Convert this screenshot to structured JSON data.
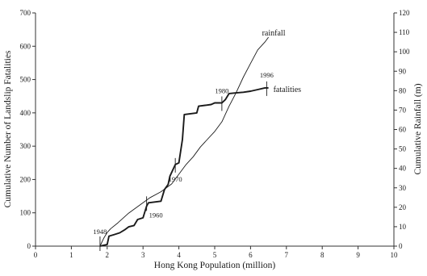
{
  "chart_data": {
    "type": "line",
    "title": "",
    "xlabel": "Hong Kong Population (million)",
    "ylabel_left": "Cumulative Number of Landslip Fatalities",
    "ylabel_right": "Cumulative Rainfall (m)",
    "xlim": [
      0,
      10
    ],
    "ylim_left": [
      0,
      700
    ],
    "ylim_right": [
      0,
      120
    ],
    "x_ticks": [
      "0",
      "1",
      "2",
      "3",
      "4",
      "5",
      "6",
      "7",
      "8",
      "9",
      "10"
    ],
    "y_left_ticks": [
      "0",
      "100",
      "200",
      "300",
      "400",
      "500",
      "600",
      "700"
    ],
    "y_right_ticks": [
      "0",
      "10",
      "20",
      "30",
      "40",
      "50",
      "60",
      "70",
      "80",
      "90",
      "100",
      "110",
      "120"
    ],
    "grid": false,
    "legend": "none (series labelled directly)",
    "colors": {
      "line": "#1a1a1a",
      "axis": "#333333"
    },
    "series": [
      {
        "name": "rainfall",
        "axis": "right",
        "style": "thin",
        "x": [
          1.8,
          1.9,
          2.0,
          2.1,
          2.3,
          2.6,
          2.9,
          3.2,
          3.5,
          3.8,
          4.0,
          4.2,
          4.4,
          4.6,
          4.8,
          5.0,
          5.2,
          5.4,
          5.6,
          5.8,
          6.0,
          6.2,
          6.4,
          6.5
        ],
        "values": [
          0,
          4,
          7,
          9,
          12,
          17,
          21,
          25,
          28,
          32,
          37,
          42,
          46,
          51,
          55,
          59,
          64,
          72,
          79,
          87,
          94,
          101,
          105,
          107.5
        ]
      },
      {
        "name": "fatalities",
        "axis": "left",
        "style": "thick-step",
        "x": [
          1.8,
          2.0,
          2.05,
          2.2,
          2.35,
          2.5,
          2.6,
          2.75,
          2.85,
          3.0,
          3.1,
          3.15,
          3.5,
          3.6,
          3.7,
          3.75,
          3.9,
          4.0,
          4.1,
          4.15,
          4.5,
          4.55,
          4.9,
          5.0,
          5.2,
          5.3,
          5.4,
          5.6,
          5.8,
          6.0,
          6.2,
          6.4,
          6.5
        ],
        "values": [
          0,
          5,
          30,
          35,
          40,
          50,
          58,
          62,
          80,
          85,
          120,
          130,
          135,
          170,
          185,
          210,
          245,
          250,
          320,
          395,
          400,
          420,
          425,
          430,
          430,
          440,
          458,
          460,
          462,
          465,
          470,
          475,
          475
        ]
      }
    ],
    "annotations": [
      {
        "text": "1948",
        "x": 1.8,
        "y": 0,
        "axis": "left"
      },
      {
        "text": "1960",
        "x": 3.1,
        "y": 130,
        "axis": "left"
      },
      {
        "text": "1970",
        "x": 3.9,
        "y": 245,
        "axis": "left"
      },
      {
        "text": "1980",
        "x": 5.2,
        "y": 430,
        "axis": "left"
      },
      {
        "text": "1996",
        "x": 6.45,
        "y": 475,
        "axis": "left"
      }
    ]
  }
}
